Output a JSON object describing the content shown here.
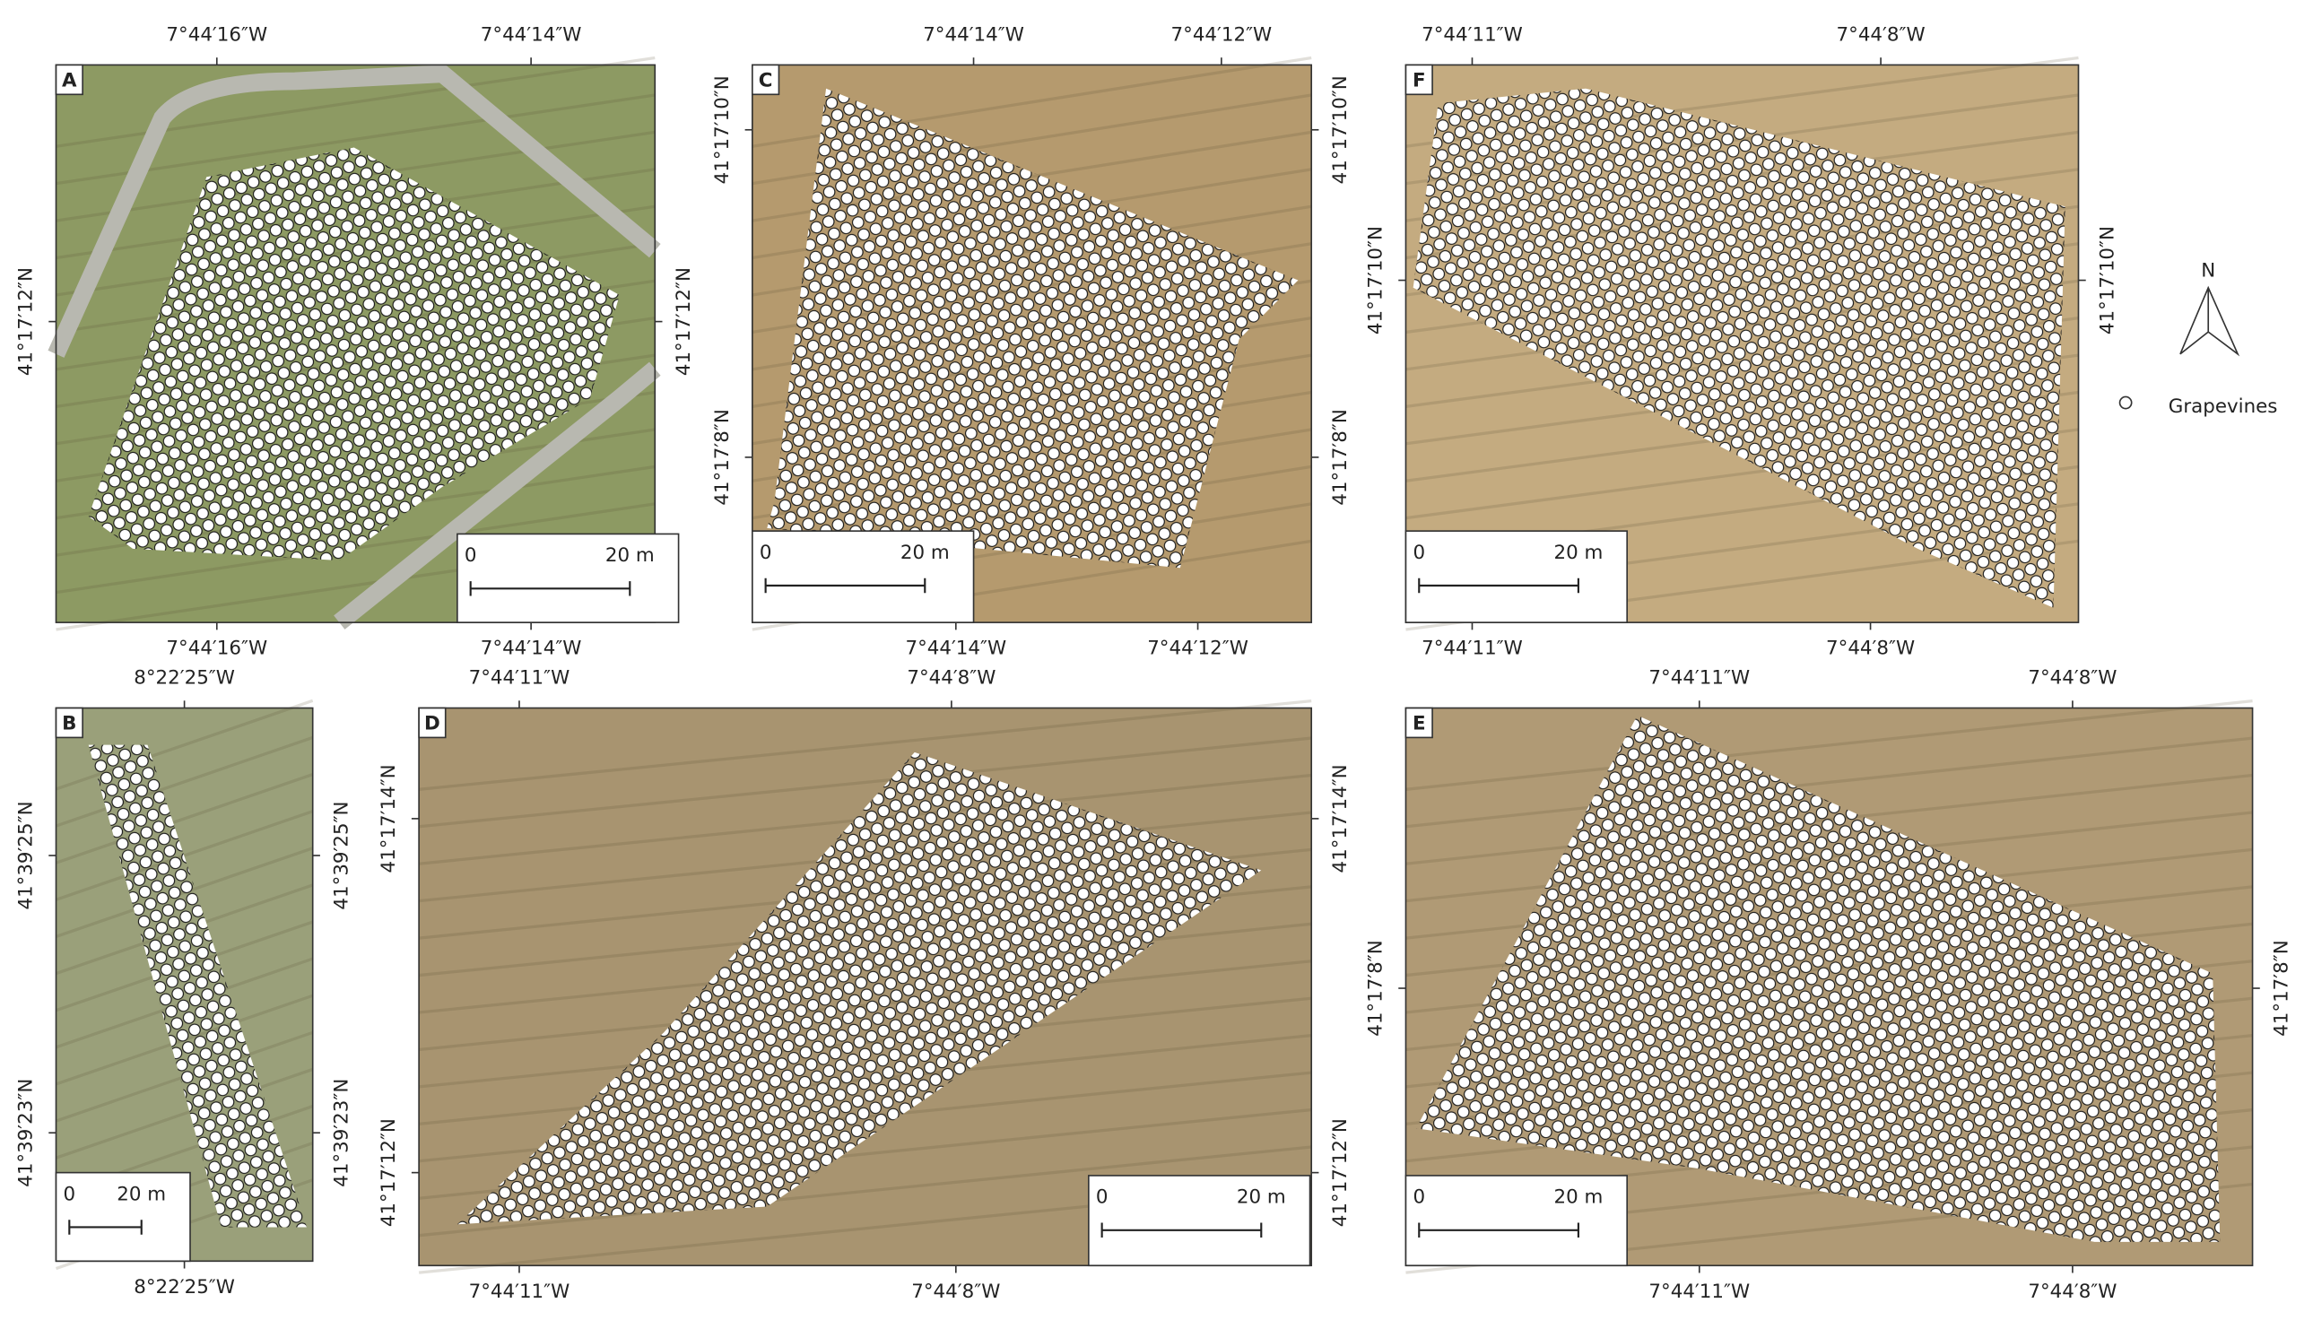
{
  "panels": [
    {
      "letter": "A",
      "top_labels": [
        "7°44′16″W",
        "7°44′14″W"
      ],
      "bottom_labels": [
        "7°44′16″W",
        "7°44′14″W"
      ],
      "left_labels": [
        "41°17′12″N"
      ],
      "right_labels": [
        "41°17′12″N"
      ],
      "scale_start": "0",
      "scale_end": "20 m"
    },
    {
      "letter": "C",
      "top_labels": [
        "7°44′14″W",
        "7°44′12″W"
      ],
      "bottom_labels": [
        "7°44′14″W",
        "7°44′12″W"
      ],
      "left_labels": [
        "41°17′10″N",
        "41°17′8″N"
      ],
      "right_labels": [
        "41°17′10″N",
        "41°17′8″N"
      ],
      "scale_start": "0",
      "scale_end": "20 m"
    },
    {
      "letter": "F",
      "top_labels": [
        "7°44′11″W",
        "7°44′8″W"
      ],
      "bottom_labels": [
        "7°44′11″W",
        "7°44′8″W"
      ],
      "left_labels": [
        "41°17′10″N"
      ],
      "right_labels": [
        "41°17′10″N"
      ],
      "scale_start": "0",
      "scale_end": "20 m"
    },
    {
      "letter": "B",
      "top_labels": [
        "8°22′25″W"
      ],
      "bottom_labels": [
        "8°22′25″W"
      ],
      "left_labels": [
        "41°39′25″N",
        "41°39′23″N"
      ],
      "right_labels": [
        "41°39′25″N",
        "41°39′23″N"
      ],
      "scale_start": "0",
      "scale_end": "20 m"
    },
    {
      "letter": "D",
      "top_labels": [
        "7°44′11″W",
        "7°44′8″W"
      ],
      "bottom_labels": [
        "7°44′11″W",
        "7°44′8″W"
      ],
      "left_labels": [
        "41°17′14″N",
        "41°17′12″N"
      ],
      "right_labels": [
        "41°17′14″N",
        "41°17′12″N"
      ],
      "scale_start": "0",
      "scale_end": "20 m"
    },
    {
      "letter": "E",
      "top_labels": [
        "7°44′11″W",
        "7°44′8″W"
      ],
      "bottom_labels": [
        "7°44′11″W",
        "7°44′8″W"
      ],
      "left_labels": [
        "41°17′8″N"
      ],
      "right_labels": [
        "41°17′8″N"
      ],
      "scale_start": "0",
      "scale_end": "20 m"
    }
  ],
  "legend": {
    "north": "N",
    "label": "Grapevines"
  }
}
